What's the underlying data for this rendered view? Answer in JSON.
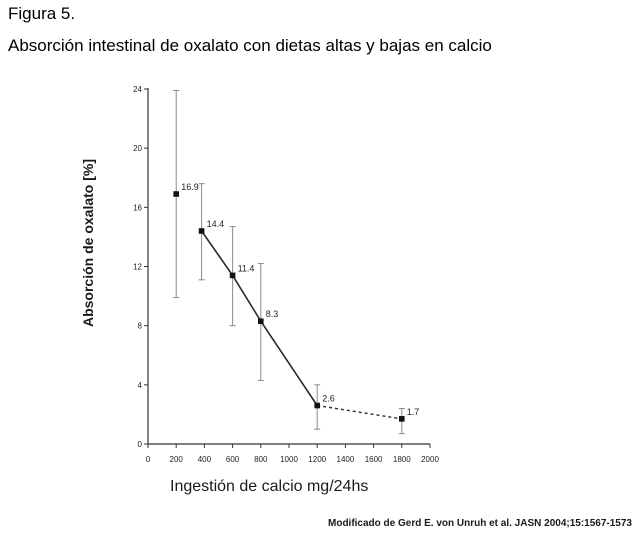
{
  "figure": {
    "label": "Figura 5.",
    "title": "Absorción intestinal de oxalato con dietas altas y bajas en calcio",
    "source": "Modificado de Gerd E. von Unruh et al. JASN 2004;15:1567-1573"
  },
  "chart_data": {
    "type": "line",
    "title": "Absorción intestinal de oxalato con dietas altas y bajas en calcio",
    "xlabel": "Ingestión de calcio mg/24hs",
    "ylabel": "Absorción de oxalato [%]",
    "xlim": [
      0,
      2000
    ],
    "ylim": [
      0,
      24
    ],
    "xticks": [
      0,
      200,
      400,
      600,
      800,
      1000,
      1200,
      1400,
      1600,
      1800,
      2000
    ],
    "yticks": [
      0,
      4,
      8,
      12,
      16,
      20,
      24
    ],
    "grid": false,
    "series": [
      {
        "points": [
          {
            "x": 200,
            "y": 16.9,
            "label": "16.9",
            "err_low": 9.9,
            "err_high": 23.9
          },
          {
            "x": 380,
            "y": 14.4,
            "label": "14.4",
            "err_low": 11.1,
            "err_high": 17.6
          },
          {
            "x": 600,
            "y": 11.4,
            "label": "11.4",
            "err_low": 8.0,
            "err_high": 14.7
          },
          {
            "x": 800,
            "y": 8.3,
            "label": "8.3",
            "err_low": 4.3,
            "err_high": 12.2
          },
          {
            "x": 1200,
            "y": 2.6,
            "label": "2.6",
            "err_low": 1.0,
            "err_high": 4.0
          },
          {
            "x": 1800,
            "y": 1.7,
            "label": "1.7",
            "err_low": 0.7,
            "err_high": 2.4
          }
        ],
        "solid_segments": [
          [
            1,
            4
          ]
        ],
        "dashed_segments": [
          [
            4,
            5
          ]
        ]
      }
    ]
  }
}
